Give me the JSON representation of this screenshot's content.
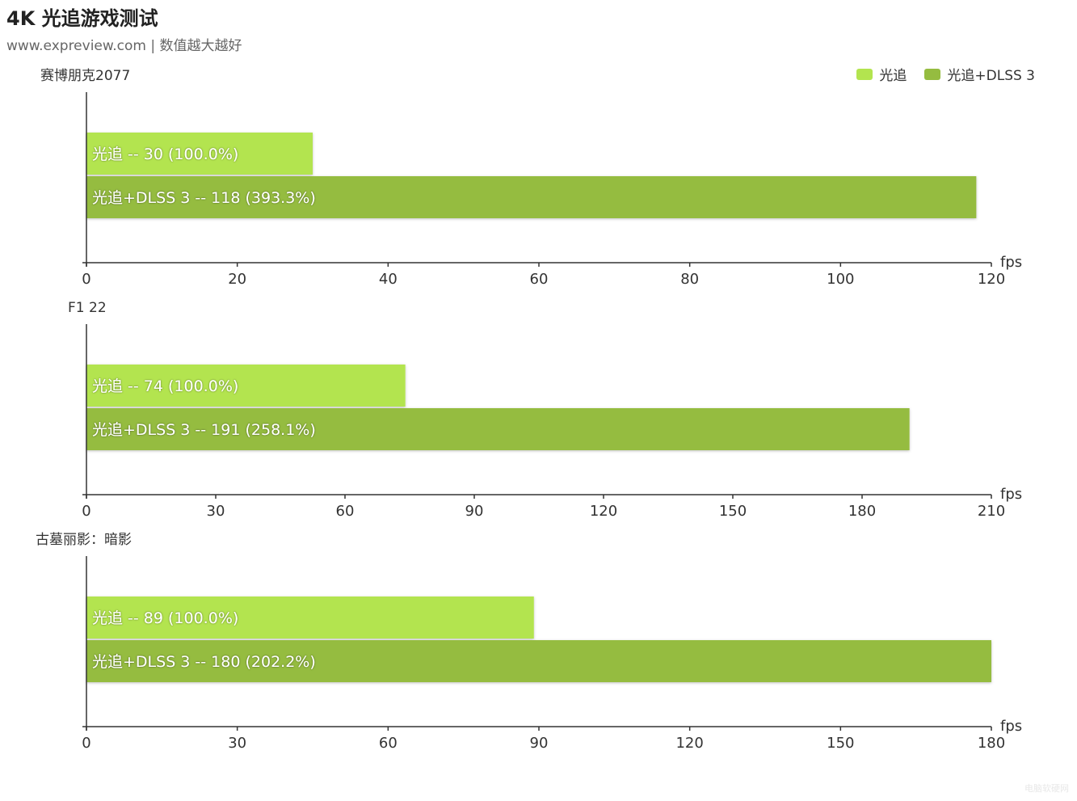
{
  "title": "4K 光追游戏测试",
  "subtitle": "www.expreview.com | 数值越大越好",
  "legend": [
    {
      "label": "光追",
      "color": "#b3e44f"
    },
    {
      "label": "光追+DLSS 3",
      "color": "#95bc40"
    }
  ],
  "label_separator": "--",
  "chart_data": [
    {
      "type": "bar",
      "orientation": "horizontal",
      "title": "赛博朋克2077",
      "xlabel": "fps",
      "xlim": [
        0,
        120
      ],
      "xticks": [
        0,
        20,
        40,
        60,
        80,
        100,
        120
      ],
      "grid": false,
      "series": [
        {
          "name": "光追",
          "value": 30,
          "pct": "100.0%",
          "color": "#b3e44f"
        },
        {
          "name": "光追+DLSS 3",
          "value": 118,
          "pct": "393.3%",
          "color": "#95bc40"
        }
      ]
    },
    {
      "type": "bar",
      "orientation": "horizontal",
      "title": "F1 22",
      "xlabel": "fps",
      "xlim": [
        0,
        210
      ],
      "xticks": [
        0,
        30,
        60,
        90,
        120,
        150,
        180,
        210
      ],
      "grid": false,
      "series": [
        {
          "name": "光追",
          "value": 74,
          "pct": "100.0%",
          "color": "#b3e44f"
        },
        {
          "name": "光追+DLSS 3",
          "value": 191,
          "pct": "258.1%",
          "color": "#95bc40"
        }
      ]
    },
    {
      "type": "bar",
      "orientation": "horizontal",
      "title": "古墓丽影：暗影",
      "xlabel": "fps",
      "xlim": [
        0,
        180
      ],
      "xticks": [
        0,
        30,
        60,
        90,
        120,
        150,
        180
      ],
      "grid": false,
      "series": [
        {
          "name": "光追",
          "value": 89,
          "pct": "100.0%",
          "color": "#b3e44f"
        },
        {
          "name": "光追+DLSS 3",
          "value": 180,
          "pct": "202.2%",
          "color": "#95bc40"
        }
      ]
    }
  ]
}
